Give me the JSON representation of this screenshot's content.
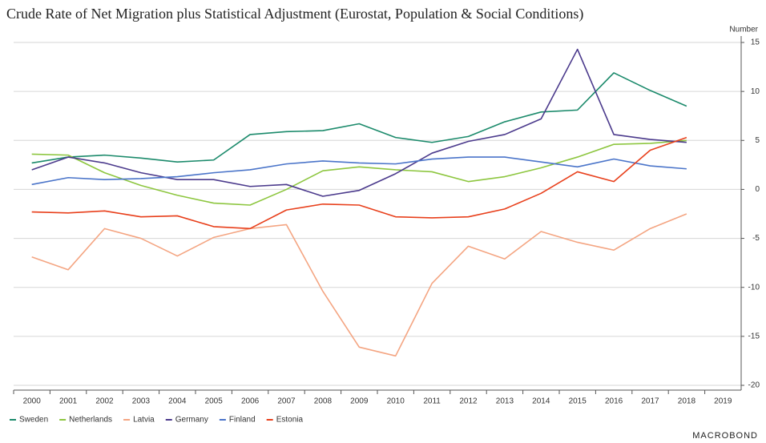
{
  "chart_data": {
    "type": "line",
    "title": "Crude Rate of Net Migration plus Statistical Adjustment (Eurostat, Population & Social Conditions)",
    "y_axis_label": "Number",
    "source": "MACROBOND",
    "categories": [
      "2000",
      "2001",
      "2002",
      "2003",
      "2004",
      "2005",
      "2006",
      "2007",
      "2008",
      "2009",
      "2010",
      "2011",
      "2012",
      "2013",
      "2014",
      "2015",
      "2016",
      "2017",
      "2018",
      "2019"
    ],
    "ylim": [
      -20,
      15
    ],
    "yticks": [
      15,
      10,
      5,
      0,
      -5,
      -10,
      -15,
      -20
    ],
    "grid": true,
    "legend": "bottom",
    "series": [
      {
        "name": "Sweden",
        "color": "#1b8a6b",
        "values": [
          2.7,
          3.3,
          3.5,
          3.2,
          2.8,
          3.0,
          5.6,
          5.9,
          6.0,
          6.7,
          5.3,
          4.8,
          5.4,
          6.9,
          7.9,
          8.1,
          11.9,
          10.1,
          8.5,
          null
        ]
      },
      {
        "name": "Netherlands",
        "color": "#8dc63f",
        "values": [
          3.6,
          3.5,
          1.7,
          0.4,
          -0.6,
          -1.4,
          -1.6,
          0.0,
          1.9,
          2.3,
          2.0,
          1.8,
          0.8,
          1.3,
          2.2,
          3.3,
          4.6,
          4.7,
          5.0,
          null
        ]
      },
      {
        "name": "Latvia",
        "color": "#f4a582",
        "values": [
          -6.9,
          -8.2,
          -4.0,
          -5.0,
          -6.8,
          -4.9,
          -4.0,
          -3.6,
          -10.4,
          -16.1,
          -17.0,
          -9.6,
          -5.8,
          -7.1,
          -4.3,
          -5.4,
          -6.2,
          -4.0,
          -2.5,
          null
        ]
      },
      {
        "name": "Germany",
        "color": "#4b3a8c",
        "values": [
          2.0,
          3.3,
          2.7,
          1.7,
          1.0,
          1.0,
          0.3,
          0.5,
          -0.7,
          -0.1,
          1.6,
          3.7,
          4.9,
          5.6,
          7.2,
          14.3,
          5.6,
          5.1,
          4.8,
          null
        ]
      },
      {
        "name": "Finland",
        "color": "#4a74c9",
        "values": [
          0.5,
          1.2,
          1.0,
          1.1,
          1.3,
          1.7,
          2.0,
          2.6,
          2.9,
          2.7,
          2.6,
          3.1,
          3.3,
          3.3,
          2.8,
          2.3,
          3.1,
          2.4,
          2.1,
          null
        ]
      },
      {
        "name": "Estonia",
        "color": "#e8401c",
        "values": [
          -2.3,
          -2.4,
          -2.2,
          -2.8,
          -2.7,
          -3.8,
          -4.0,
          -2.1,
          -1.5,
          -1.6,
          -2.8,
          -2.9,
          -2.8,
          -2.0,
          -0.4,
          1.8,
          0.8,
          4.0,
          5.3,
          null
        ]
      }
    ]
  }
}
